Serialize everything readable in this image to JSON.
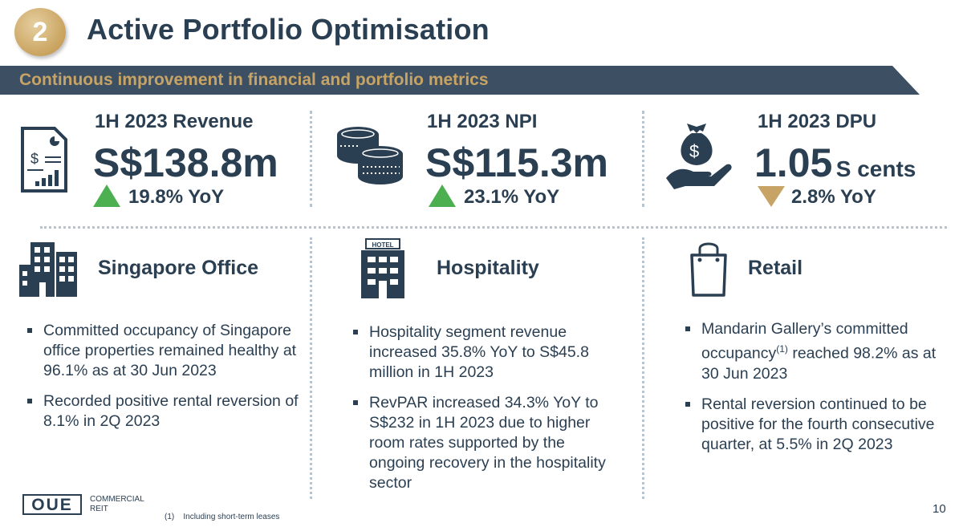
{
  "header": {
    "section_number": "2",
    "title": "Active Portfolio Optimisation",
    "subtitle": "Continuous improvement in financial and portfolio metrics"
  },
  "colors": {
    "navy": "#2b3f52",
    "gold": "#c7a465",
    "green": "#4caf50",
    "divider": "#b7c3cf"
  },
  "kpis": [
    {
      "title": "1H 2023 Revenue",
      "value": "S$138.8m",
      "unit": "",
      "change": "19.8% YoY",
      "direction": "up",
      "icon": "financial-report-icon"
    },
    {
      "title": "1H 2023 NPI",
      "value": "S$115.3m",
      "unit": "",
      "change": "23.1% YoY",
      "direction": "up",
      "icon": "coins-icon"
    },
    {
      "title": "1H 2023 DPU",
      "value": "1.05",
      "unit": "S cents",
      "change": "2.8% YoY",
      "direction": "down",
      "icon": "money-bag-hand-icon"
    }
  ],
  "segments": [
    {
      "title": "Singapore Office",
      "icon": "office-buildings-icon",
      "bullets": [
        "Committed occupancy of Singapore office properties remained healthy at 96.1% as at 30 Jun 2023",
        "Recorded positive rental reversion of 8.1% in 2Q 2023"
      ]
    },
    {
      "title": "Hospitality",
      "icon": "hotel-icon",
      "icon_label": "HOTEL",
      "bullets": [
        "Hospitality segment revenue increased 35.8% YoY to S$45.8 million in 1H 2023",
        "RevPAR increased 34.3% YoY to S$232 in 1H 2023 due to higher room rates supported by the ongoing recovery in the hospitality sector"
      ]
    },
    {
      "title": "Retail",
      "icon": "shopping-bag-icon",
      "bullets": [
        {
          "before": "Mandarin Gallery’s committed occupancy",
          "sup": "(1)",
          "after": " reached 98.2% as at 30 Jun 2023"
        },
        "Rental reversion continued to be positive for the fourth consecutive quarter, at 5.5% in 2Q 2023"
      ]
    }
  ],
  "footer": {
    "logo_word": "OUE",
    "logo_line1": "COMMERCIAL",
    "logo_line2": "REIT",
    "footnote_marker": "(1)",
    "footnote_text": "Including short-term leases",
    "page_number": "10"
  }
}
